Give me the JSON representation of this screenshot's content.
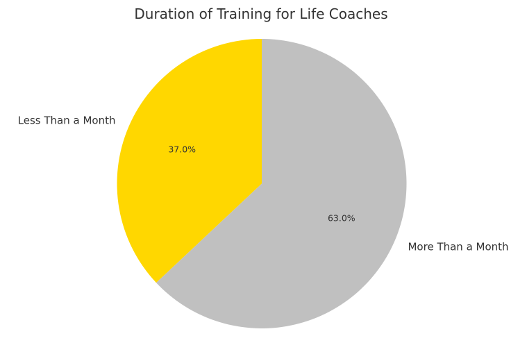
{
  "chart_data": {
    "type": "pie",
    "title": "Duration of Training for Life Coaches",
    "categories": [
      "Less Than a Month",
      "More Than a Month"
    ],
    "values": [
      37.0,
      63.0
    ],
    "percent_labels": [
      "37.0%",
      "63.0%"
    ],
    "colors": [
      "#FFD700",
      "#C0C0C0"
    ],
    "start_angle_deg": 90,
    "direction": "counterclockwise",
    "legend": "none"
  }
}
